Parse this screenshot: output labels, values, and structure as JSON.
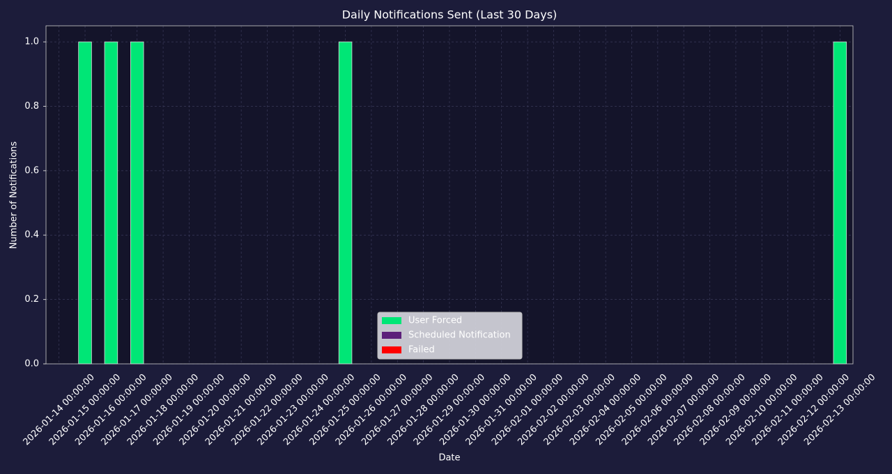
{
  "chart_data": {
    "type": "stacked_bar",
    "title": "Daily Notifications Sent (Last 30 Days)",
    "x_label": "Date",
    "y_label": "Number of Notifications",
    "categories": [
      "2026-01-14 00:00:00",
      "2026-01-15 00:00:00",
      "2026-01-16 00:00:00",
      "2026-01-17 00:00:00",
      "2026-01-18 00:00:00",
      "2026-01-19 00:00:00",
      "2026-01-20 00:00:00",
      "2026-01-21 00:00:00",
      "2026-01-22 00:00:00",
      "2026-01-23 00:00:00",
      "2026-01-24 00:00:00",
      "2026-01-25 00:00:00",
      "2026-01-26 00:00:00",
      "2026-01-27 00:00:00",
      "2026-01-28 00:00:00",
      "2026-01-29 00:00:00",
      "2026-01-30 00:00:00",
      "2026-01-31 00:00:00",
      "2026-02-01 00:00:00",
      "2026-02-02 00:00:00",
      "2026-02-03 00:00:00",
      "2026-02-04 00:00:00",
      "2026-02-05 00:00:00",
      "2026-02-06 00:00:00",
      "2026-02-07 00:00:00",
      "2026-02-08 00:00:00",
      "2026-02-09 00:00:00",
      "2026-02-10 00:00:00",
      "2026-02-11 00:00:00",
      "2026-02-12 00:00:00",
      "2026-02-13 00:00:00"
    ],
    "series": [
      {
        "name": "User Forced",
        "color": "#00e676",
        "values": [
          0,
          1,
          1,
          1,
          0,
          0,
          0,
          0,
          0,
          0,
          0,
          1,
          0,
          0,
          0,
          0,
          0,
          0,
          0,
          0,
          0,
          0,
          0,
          0,
          0,
          0,
          0,
          0,
          0,
          0,
          1
        ]
      },
      {
        "name": "Scheduled Notification",
        "color": "#5c1f7a",
        "values": [
          0,
          0,
          0,
          0,
          0,
          0,
          0,
          0,
          0,
          0,
          0,
          0,
          0,
          0,
          0,
          0,
          0,
          0,
          0,
          0,
          0,
          0,
          0,
          0,
          0,
          0,
          0,
          0,
          0,
          0,
          0
        ]
      },
      {
        "name": "Failed",
        "color": "#ff0000",
        "values": [
          0,
          0,
          0,
          0,
          0,
          0,
          0,
          0,
          0,
          0,
          0,
          0,
          0,
          0,
          0,
          0,
          0,
          0,
          0,
          0,
          0,
          0,
          0,
          0,
          0,
          0,
          0,
          0,
          0,
          0,
          0
        ]
      }
    ],
    "ylim": [
      0,
      1.05
    ],
    "yticks": [
      {
        "value": 0,
        "label": "0.0"
      },
      0.2,
      0.4,
      0.6,
      0.8,
      {
        "value": 1,
        "label": "1.0"
      }
    ],
    "grid": true,
    "legend": "lower center"
  }
}
